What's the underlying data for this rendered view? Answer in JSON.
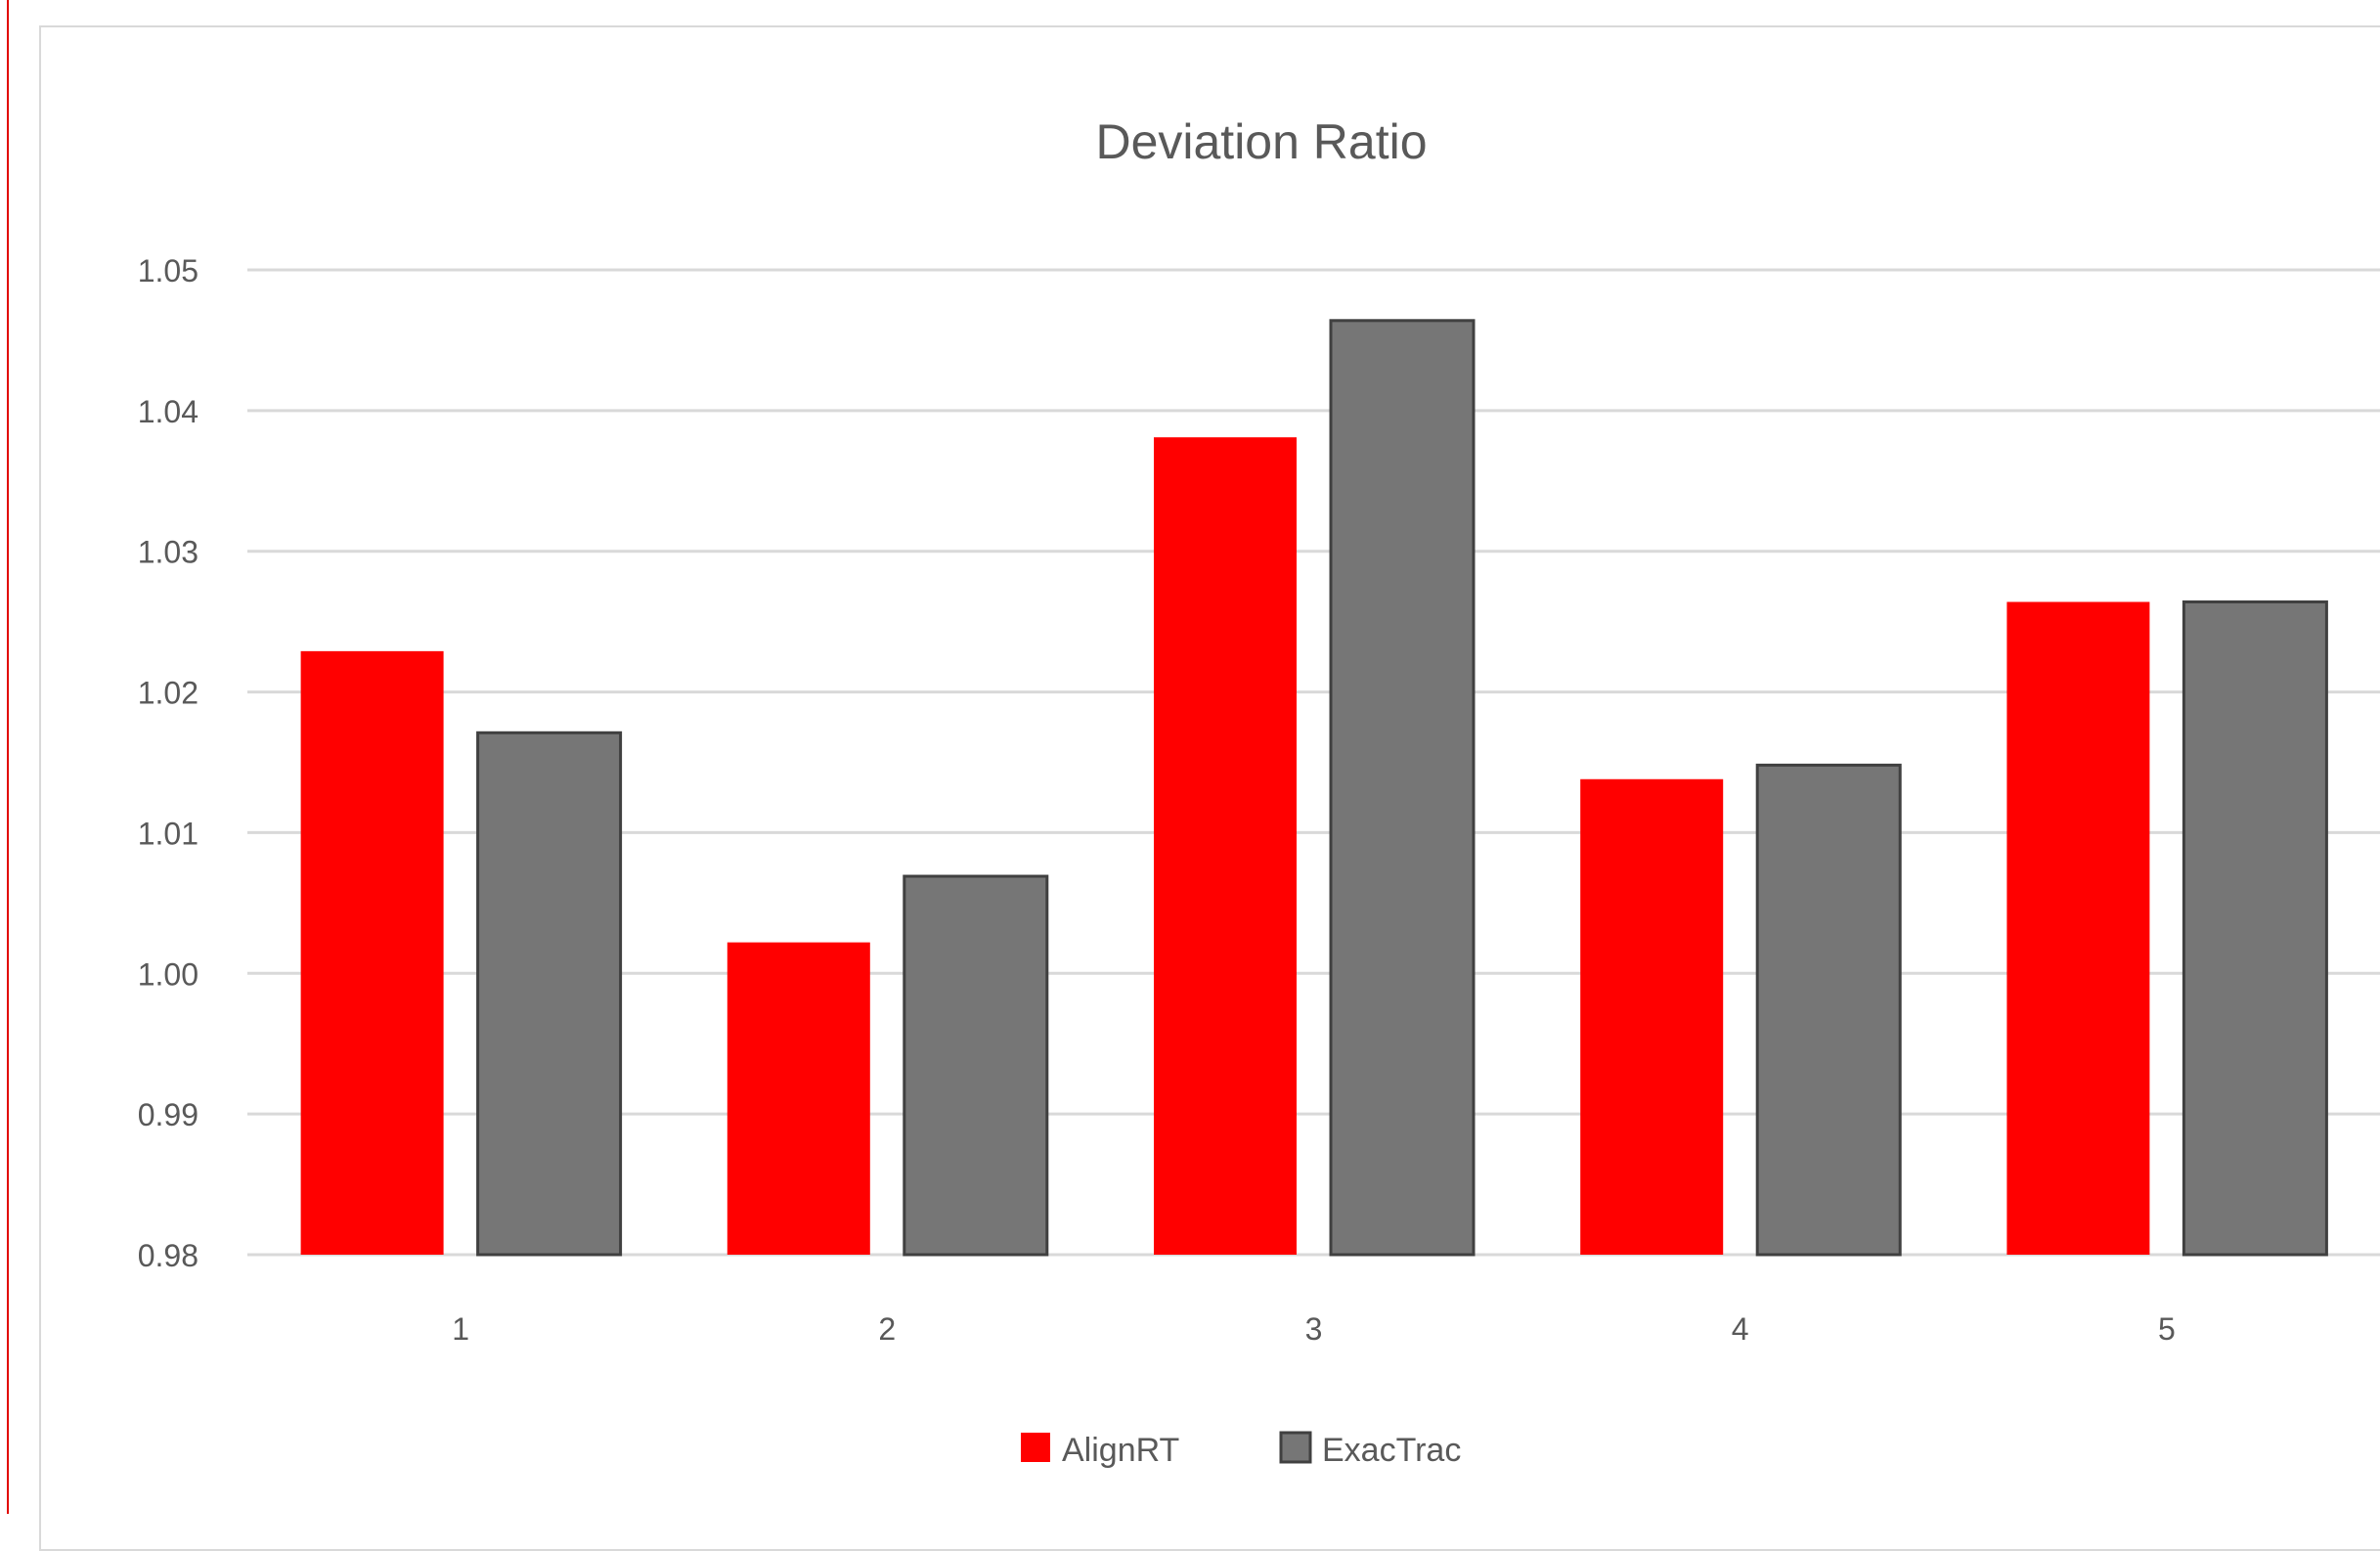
{
  "chart_data": {
    "type": "bar",
    "title": "Deviation Ratio",
    "xlabel": "",
    "ylabel": "",
    "categories": [
      "1",
      "2",
      "3",
      "4",
      "5"
    ],
    "series": [
      {
        "name": "AlignRT",
        "values": [
          1.0229,
          1.0022,
          1.0381,
          1.0138,
          1.0264
        ],
        "color": "#ff0000"
      },
      {
        "name": "ExacTrac",
        "values": [
          1.0171,
          1.0069,
          1.0464,
          1.0148,
          1.0264
        ],
        "color": "#767676"
      }
    ],
    "ylim": [
      0.98,
      1.05
    ],
    "yticks": [
      "0.98",
      "0.99",
      "1.00",
      "1.01",
      "1.02",
      "1.03",
      "1.04",
      "1.05"
    ],
    "grid": true,
    "legend_position": "bottom",
    "colors": {
      "gridline": "#d9d9d9",
      "text": "#595959",
      "bar_outline": "#404040"
    }
  }
}
